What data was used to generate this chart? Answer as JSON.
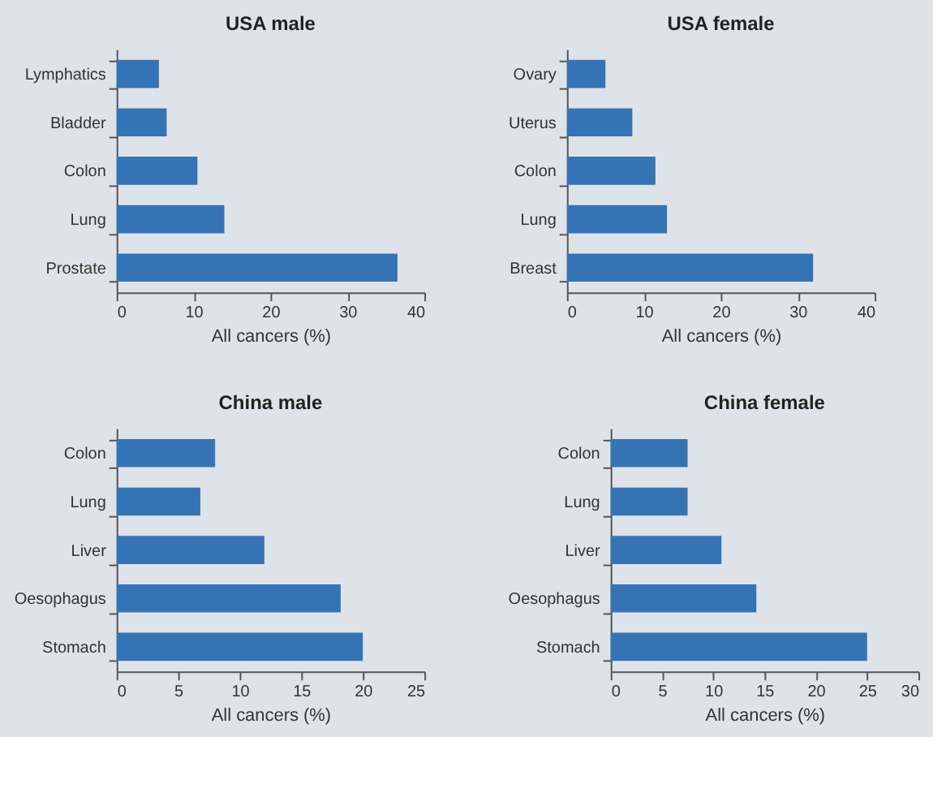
{
  "chart_data": [
    {
      "type": "bar",
      "orientation": "horizontal",
      "title": "USA male",
      "xlabel": "All cancers (%)",
      "categories": [
        "Lymphatics",
        "Bladder",
        "Colon",
        "Lung",
        "Prostate"
      ],
      "values": [
        5.5,
        6.5,
        10.5,
        14,
        36.5
      ],
      "color": "#3574b4",
      "xlim": [
        0,
        40
      ],
      "xticks": [
        0,
        10,
        20,
        30,
        40
      ],
      "grid": false
    },
    {
      "type": "bar",
      "orientation": "horizontal",
      "title": "USA female",
      "xlabel": "All cancers (%)",
      "categories": [
        "Ovary",
        "Uterus",
        "Colon",
        "Lung",
        "Breast"
      ],
      "values": [
        5,
        8.5,
        11.5,
        13,
        32
      ],
      "color": "#3574b4",
      "xlim": [
        0,
        40
      ],
      "xticks": [
        0,
        10,
        20,
        30,
        40
      ],
      "grid": false
    },
    {
      "type": "bar",
      "orientation": "horizontal",
      "title": "China male",
      "xlabel": "All cancers (%)",
      "categories": [
        "Colon",
        "Lung",
        "Liver",
        "Oesophagus",
        "Stomach"
      ],
      "values": [
        8,
        6.8,
        12,
        18.2,
        20
      ],
      "color": "#3574b4",
      "xlim": [
        0,
        25
      ],
      "xticks": [
        0,
        5,
        10,
        15,
        20,
        25
      ],
      "grid": false
    },
    {
      "type": "bar",
      "orientation": "horizontal",
      "title": "China female",
      "xlabel": "All cancers (%)",
      "categories": [
        "Colon",
        "Lung",
        "Liver",
        "Oesophagus",
        "Stomach"
      ],
      "values": [
        7.5,
        7.5,
        10.8,
        14.2,
        25
      ],
      "color": "#3574b4",
      "xlim": [
        0,
        30
      ],
      "xticks": [
        0,
        5,
        10,
        15,
        20,
        25,
        30
      ],
      "grid": false
    }
  ]
}
